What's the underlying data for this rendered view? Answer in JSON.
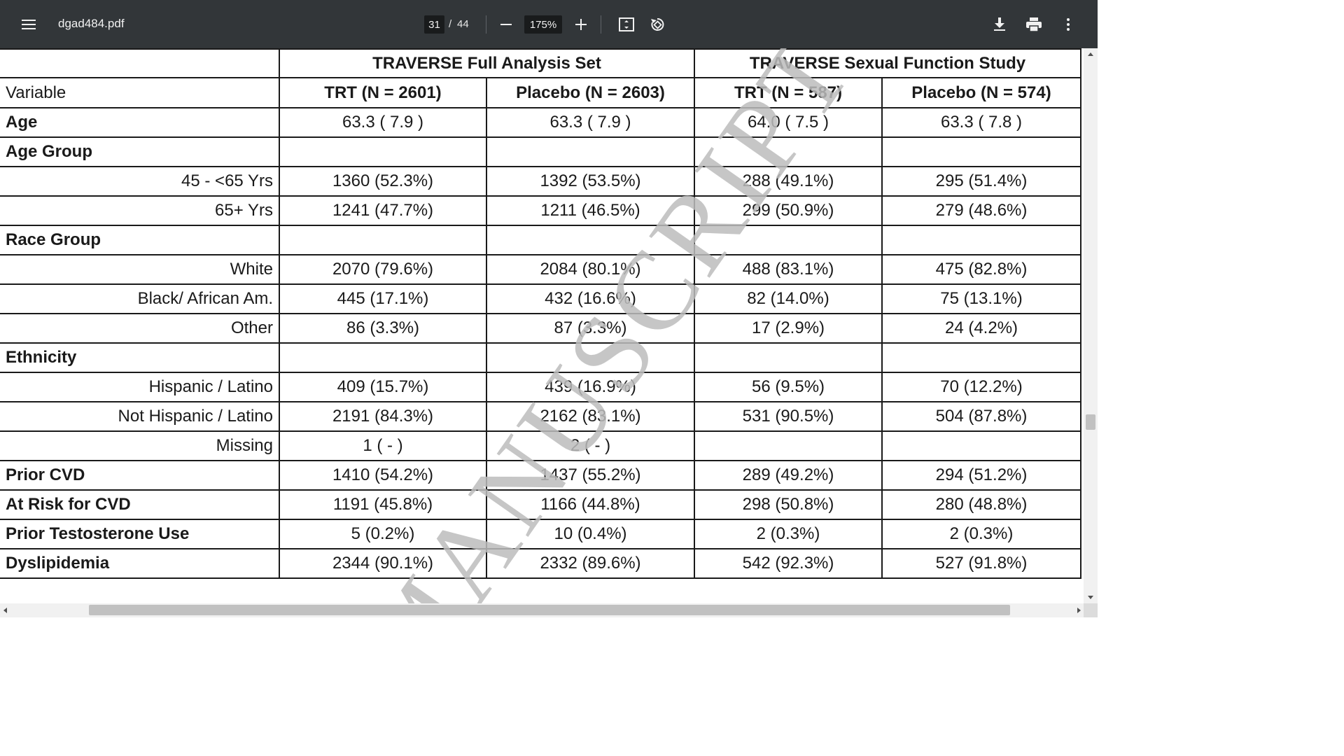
{
  "toolbar": {
    "menu_icon": "hamburger-menu-icon",
    "title": "dgad484.pdf",
    "page_current": "31",
    "page_separator": "/",
    "page_total": "44",
    "zoom": "175%",
    "icons": [
      "zoom-out-icon",
      "zoom-in-icon",
      "fit-to-page-icon",
      "rotate-icon",
      "download-icon",
      "print-icon",
      "more-options-icon"
    ]
  },
  "table": {
    "group_headers": [
      "TRAVERSE Full Analysis Set",
      "TRAVERSE Sexual Function Study"
    ],
    "column_headers": [
      "Variable",
      "TRT (N = 2601)",
      "Placebo (N = 2603)",
      "TRT (N = 587)",
      "Placebo (N = 574)"
    ],
    "rows": [
      {
        "label": "Age",
        "style": "bold",
        "values": [
          "63.3 ( 7.9 )",
          "63.3 ( 7.9 )",
          "64.0 ( 7.5 )",
          "63.3 ( 7.8 )"
        ]
      },
      {
        "label": "Age Group",
        "style": "bold",
        "values": [
          "",
          "",
          "",
          ""
        ]
      },
      {
        "label": "45 - <65 Yrs",
        "style": "sub",
        "values": [
          "1360 (52.3%)",
          "1392 (53.5%)",
          "288 (49.1%)",
          "295 (51.4%)"
        ]
      },
      {
        "label": "65+ Yrs",
        "style": "sub",
        "values": [
          "1241 (47.7%)",
          "1211 (46.5%)",
          "299 (50.9%)",
          "279 (48.6%)"
        ]
      },
      {
        "label": "Race Group",
        "style": "bold",
        "values": [
          "",
          "",
          "",
          ""
        ]
      },
      {
        "label": "White",
        "style": "sub",
        "values": [
          "2070 (79.6%)",
          "2084 (80.1%)",
          "488 (83.1%)",
          "475 (82.8%)"
        ]
      },
      {
        "label": "Black/ African Am.",
        "style": "sub",
        "values": [
          "445 (17.1%)",
          "432 (16.6%)",
          "82 (14.0%)",
          "75 (13.1%)"
        ]
      },
      {
        "label": "Other",
        "style": "sub",
        "values": [
          "86 (3.3%)",
          "87 (3.3%)",
          "17 (2.9%)",
          "24 (4.2%)"
        ]
      },
      {
        "label": "Ethnicity",
        "style": "bold",
        "values": [
          "",
          "",
          "",
          ""
        ]
      },
      {
        "label": "Hispanic / Latino",
        "style": "sub",
        "values": [
          "409 (15.7%)",
          "439 (16.9%)",
          "56 (9.5%)",
          "70 (12.2%)"
        ]
      },
      {
        "label": "Not Hispanic / Latino",
        "style": "sub",
        "values": [
          "2191 (84.3%)",
          "2162 (83.1%)",
          "531 (90.5%)",
          "504 (87.8%)"
        ]
      },
      {
        "label": "Missing",
        "style": "sub",
        "values": [
          "1 ( - )",
          "2 ( - )",
          "",
          ""
        ]
      },
      {
        "label": "Prior CVD",
        "style": "bold",
        "values": [
          "1410 (54.2%)",
          "1437 (55.2%)",
          "289 (49.2%)",
          "294 (51.2%)"
        ]
      },
      {
        "label": "At Risk for CVD",
        "style": "bold",
        "values": [
          "1191 (45.8%)",
          "1166 (44.8%)",
          "298 (50.8%)",
          "280 (48.8%)"
        ]
      },
      {
        "label": "Prior Testosterone Use",
        "style": "bold",
        "values": [
          "5 (0.2%)",
          "10 (0.4%)",
          "2 (0.3%)",
          "2 (0.3%)"
        ]
      },
      {
        "label": "Dyslipidemia",
        "style": "bold",
        "values": [
          "2344 (90.1%)",
          "2332 (89.6%)",
          "542 (92.3%)",
          "527 (91.8%)"
        ]
      }
    ]
  },
  "watermark": "MANUSCRIPT",
  "colors": {
    "toolbar_bg": "#323639",
    "toolbar_text": "#f1f1f1",
    "input_bg": "#191b1c",
    "watermark": "#bdbdbd"
  }
}
